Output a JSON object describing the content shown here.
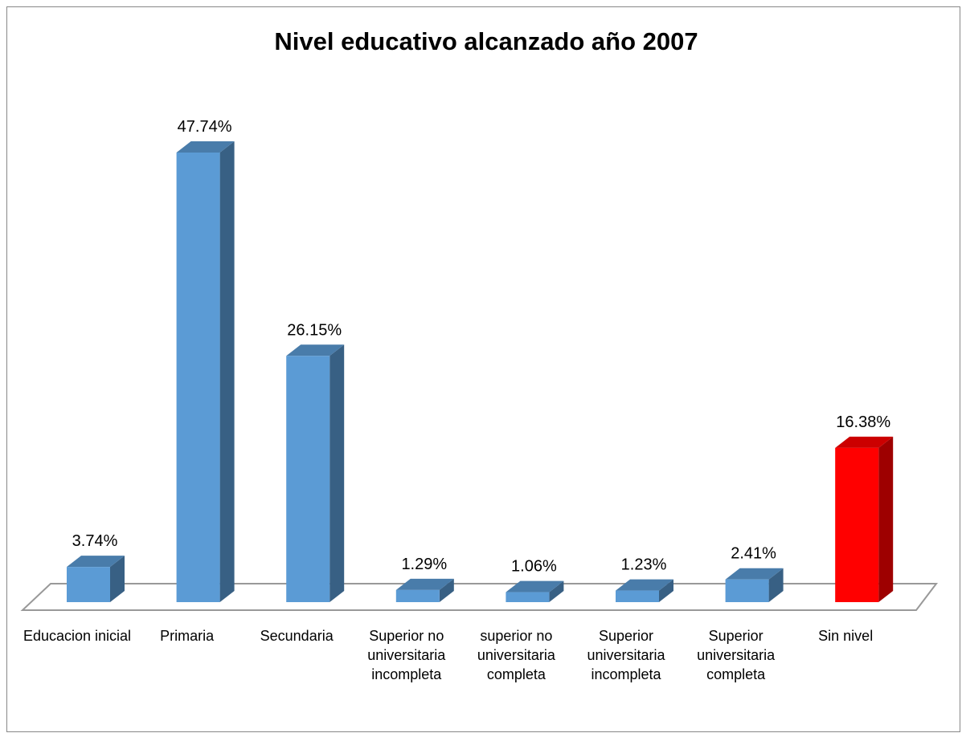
{
  "chart_data": {
    "type": "bar3d",
    "title": "Nivel educativo alcanzado año 2007",
    "categories": [
      "Educacion inicial",
      "Primaria",
      "Secundaria",
      "Superior no universitaria incompleta",
      "superior no universitaria completa",
      "Superior universitaria incompleta",
      "Superior universitaria completa",
      "Sin nivel"
    ],
    "values": [
      3.74,
      47.74,
      26.15,
      1.29,
      1.06,
      1.23,
      2.41,
      16.38
    ],
    "value_labels": [
      "3.74%",
      "47.74%",
      "26.15%",
      "1.29%",
      "1.06%",
      "1.23%",
      "2.41%",
      "16.38%"
    ],
    "colors": [
      "#5b9bd5",
      "#5b9bd5",
      "#5b9bd5",
      "#5b9bd5",
      "#5b9bd5",
      "#5b9bd5",
      "#5b9bd5",
      "#ff0000"
    ]
  }
}
